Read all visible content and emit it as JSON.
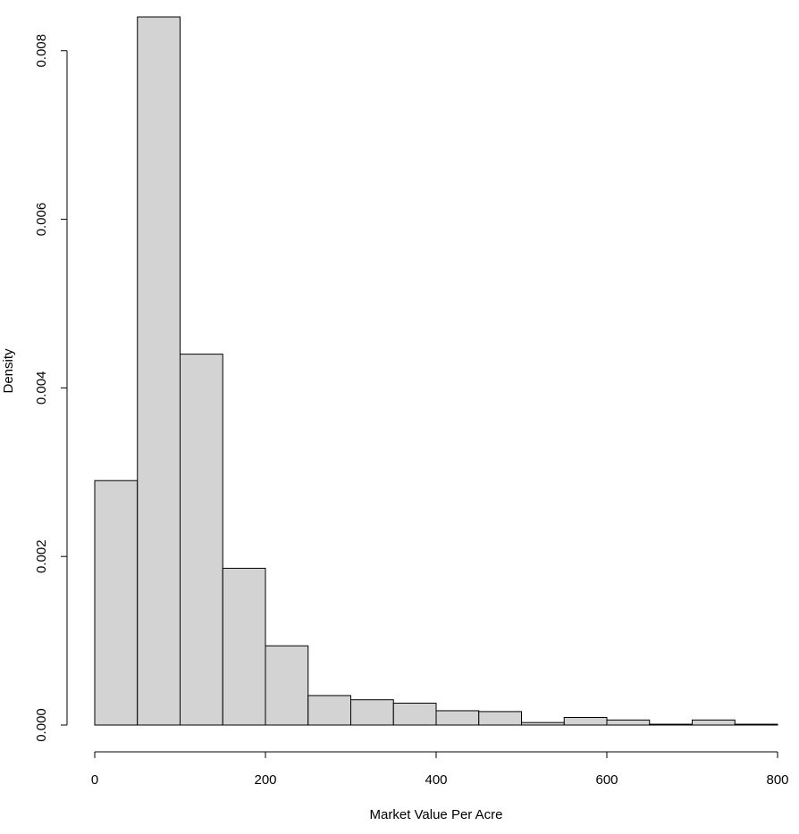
{
  "chart_data": {
    "type": "bar",
    "subtype": "histogram",
    "title": "",
    "xlabel": "Market Value Per Acre",
    "ylabel": "Density",
    "bin_edges": [
      0,
      50,
      100,
      150,
      200,
      250,
      300,
      350,
      400,
      450,
      500,
      550,
      600,
      650,
      700,
      750,
      800
    ],
    "values": [
      0.0029,
      0.0084,
      0.0044,
      0.00186,
      0.00094,
      0.00035,
      0.0003,
      0.00026,
      0.00017,
      0.00016,
      3e-05,
      9e-05,
      6e-05,
      1e-05,
      6e-05,
      1e-05
    ],
    "xlim": [
      0,
      800
    ],
    "ylim": [
      0,
      0.0084
    ],
    "x_ticks": [
      0,
      200,
      400,
      600,
      800
    ],
    "x_tick_labels": [
      "0",
      "200",
      "400",
      "600",
      "800"
    ],
    "y_ticks": [
      0,
      0.002,
      0.004,
      0.006,
      0.008
    ],
    "y_tick_labels": [
      "0.000",
      "0.002",
      "0.004",
      "0.006",
      "0.008"
    ],
    "bar_fill": "#d3d3d3",
    "bar_stroke": "#000000",
    "grid": false,
    "legend": "none"
  }
}
